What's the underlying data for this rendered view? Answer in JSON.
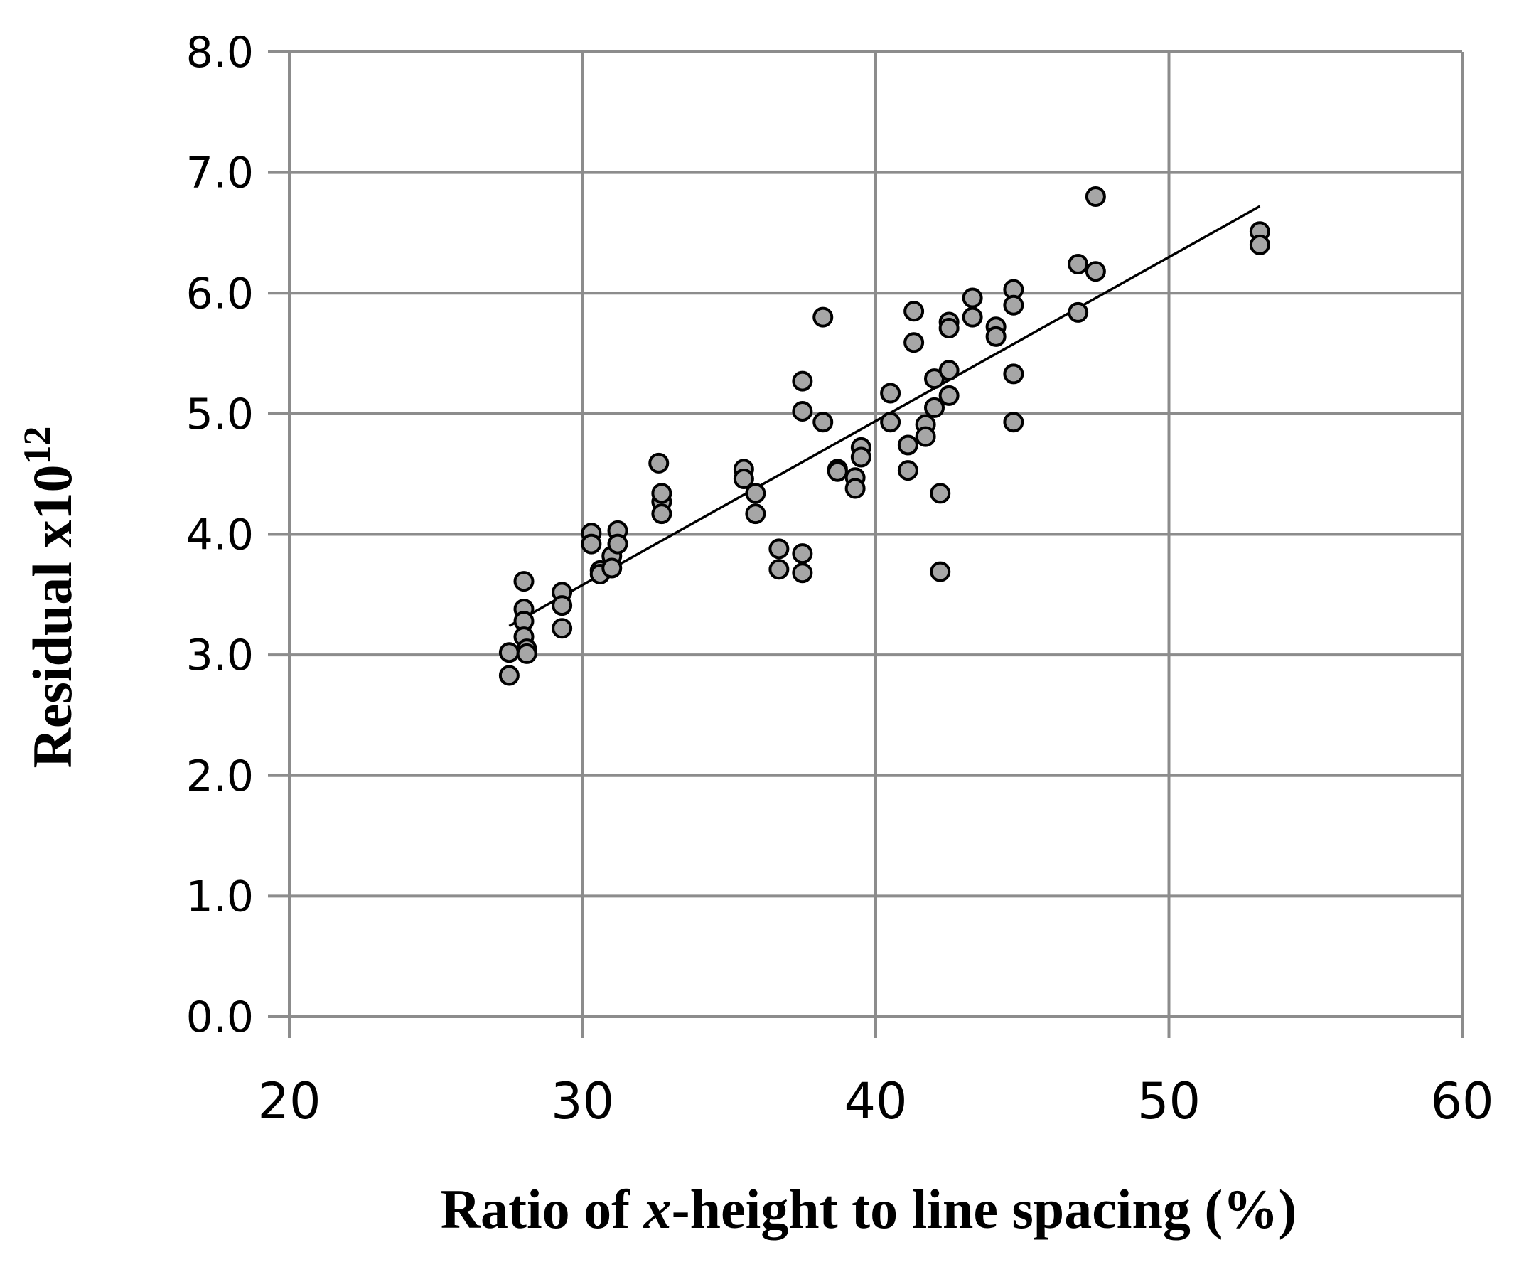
{
  "chart_data": {
    "type": "scatter",
    "title": "",
    "xlabel": "Ratio of x-height to line spacing (%)",
    "xlabel_parts": {
      "before": "Ratio of ",
      "italic": "x",
      "after": "-height to line spacing (%)"
    },
    "ylabel": "Residual x1012",
    "ylabel_parts": {
      "base": "Residual x10",
      "superscript": "12"
    },
    "xlim": [
      20,
      60
    ],
    "ylim": [
      0,
      8
    ],
    "xticks": [
      20,
      30,
      40,
      50,
      60
    ],
    "yticks": [
      0,
      1,
      2,
      3,
      4,
      5,
      6,
      7,
      8
    ],
    "x_tick_labels": [
      "20",
      "30",
      "40",
      "50",
      "60"
    ],
    "y_tick_labels": [
      "0.0",
      "1.0",
      "2.0",
      "3.0",
      "4.0",
      "5.0",
      "6.0",
      "7.0",
      "8.0"
    ],
    "grid": true,
    "colors": {
      "point_fill": "#a6a6a6",
      "point_stroke": "#000000",
      "grid": "#8c8c8c",
      "trendline": "#000000"
    },
    "series": [
      {
        "name": "Residual",
        "x": [
          27.5,
          27.5,
          28.0,
          28.0,
          28.0,
          28.0,
          28.1,
          28.1,
          29.3,
          29.3,
          29.3,
          30.3,
          30.3,
          30.6,
          30.6,
          31.0,
          31.0,
          31.2,
          31.2,
          32.6,
          32.7,
          32.7,
          32.7,
          35.5,
          35.5,
          35.9,
          35.9,
          36.7,
          36.7,
          37.5,
          37.5,
          37.5,
          37.5,
          38.2,
          38.2,
          38.7,
          38.7,
          39.3,
          39.3,
          39.5,
          39.5,
          40.5,
          40.5,
          41.1,
          41.1,
          41.3,
          41.3,
          41.7,
          41.7,
          42.0,
          42.0,
          42.2,
          42.2,
          42.5,
          42.5,
          42.5,
          42.5,
          43.3,
          43.3,
          44.1,
          44.1,
          44.7,
          44.7,
          44.7,
          44.7,
          46.9,
          46.9,
          47.5,
          47.5,
          53.1,
          53.1
        ],
        "y": [
          2.83,
          3.02,
          3.61,
          3.38,
          3.28,
          3.15,
          3.05,
          3.01,
          3.52,
          3.41,
          3.22,
          4.01,
          3.92,
          3.7,
          3.67,
          3.82,
          3.72,
          4.03,
          3.92,
          4.59,
          4.27,
          4.34,
          4.17,
          4.54,
          4.46,
          4.34,
          4.17,
          3.88,
          3.71,
          5.27,
          5.02,
          3.84,
          3.68,
          5.8,
          4.93,
          4.54,
          4.52,
          4.47,
          4.38,
          4.72,
          4.64,
          5.17,
          4.93,
          4.74,
          4.53,
          5.85,
          5.59,
          4.91,
          4.81,
          5.29,
          5.05,
          4.34,
          3.69,
          5.76,
          5.71,
          5.36,
          5.15,
          5.96,
          5.8,
          5.72,
          5.64,
          6.03,
          5.9,
          5.33,
          4.93,
          6.24,
          5.84,
          6.8,
          6.18,
          6.51,
          6.4
        ]
      }
    ],
    "trendline": {
      "type": "linear",
      "x_start": 27.5,
      "y_start": 3.24,
      "x_end": 53.1,
      "y_end": 6.72
    }
  }
}
